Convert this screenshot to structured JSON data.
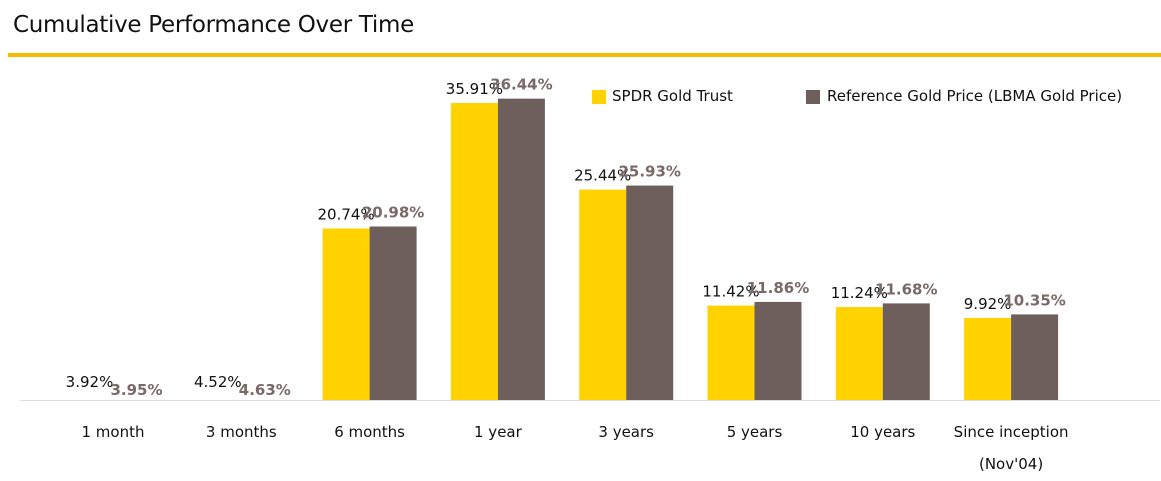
{
  "title": "Cumulative Performance Over Time",
  "colors": {
    "accent_rule": "#F7BA00",
    "series1": "#FFD200",
    "series2": "#6E5E5C",
    "series2_label": "#7A6A66"
  },
  "chart_data": {
    "type": "bar",
    "title": "Cumulative Performance Over Time",
    "xlabel": "",
    "ylabel": "",
    "categories": [
      "1 month",
      "3 months",
      "6 months",
      "1 year",
      "3 years",
      "5 years",
      "10 years",
      "Since inception\n(Nov'04)"
    ],
    "series": [
      {
        "name": "SPDR Gold Trust",
        "values": [
          3.92,
          4.52,
          20.74,
          35.91,
          25.44,
          11.42,
          11.24,
          9.92
        ],
        "labels": [
          "3.92%",
          "4.52%",
          "20.74%",
          "35.91%",
          "25.44%",
          "11.42%",
          "11.24%",
          "9.92%"
        ]
      },
      {
        "name": "Reference Gold Price (LBMA Gold Price)",
        "values": [
          3.95,
          4.63,
          20.98,
          36.44,
          25.93,
          11.86,
          11.68,
          10.35
        ],
        "labels": [
          "3.95%",
          "4.63%",
          "20.98%",
          "36.44%",
          "25.93%",
          "11.86%",
          "11.68%",
          "10.35%"
        ]
      }
    ],
    "bars_drawn": [
      false,
      false,
      true,
      true,
      true,
      true,
      true,
      true
    ],
    "legend_position": "top-right",
    "grid": false
  }
}
